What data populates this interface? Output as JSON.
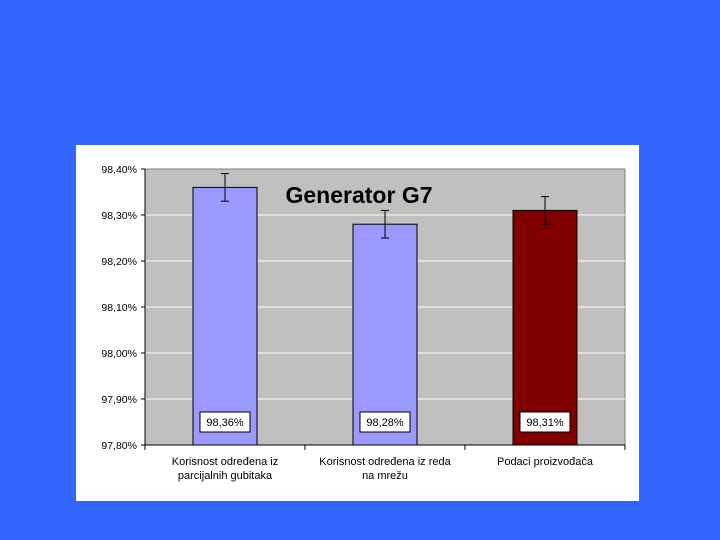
{
  "slide": {
    "background": "#3366ff"
  },
  "chart_data": {
    "type": "bar",
    "title": "Generator G7",
    "categories": [
      [
        "Korisnost određena iz",
        "parcijalnih gubitaka"
      ],
      [
        "Korisnost određena iz reda",
        "na mrežu"
      ],
      [
        "Podaci proizvođača"
      ]
    ],
    "values": [
      98.36,
      98.28,
      98.31
    ],
    "value_labels": [
      "98,36%",
      "98,28%",
      "98,31%"
    ],
    "error_bars": [
      {
        "low": 98.33,
        "high": 98.39
      },
      {
        "low": 98.25,
        "high": 98.31
      },
      {
        "low": 98.28,
        "high": 98.34
      }
    ],
    "bar_colors": [
      "#9999ff",
      "#9999ff",
      "#800000"
    ],
    "ylim": [
      97.8,
      98.4
    ],
    "yticks": [
      97.8,
      97.9,
      98.0,
      98.1,
      98.2,
      98.3,
      98.4
    ],
    "ytick_labels": [
      "97,80%",
      "97,90%",
      "98,00%",
      "98,10%",
      "98,20%",
      "98,30%",
      "98,40%"
    ],
    "plot_background": "#c0c0c0",
    "grid": true,
    "legend": "none",
    "xlabel": "",
    "ylabel": ""
  }
}
